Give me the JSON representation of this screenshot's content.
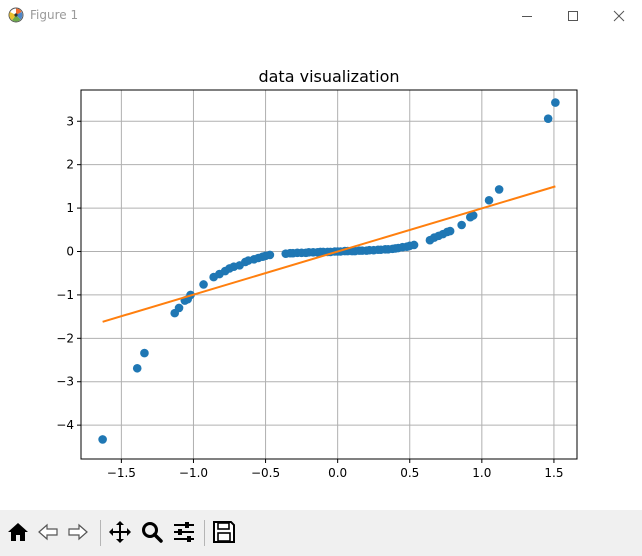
{
  "window": {
    "title": "Figure 1",
    "controls": [
      "minimize",
      "maximize",
      "close"
    ]
  },
  "toolbar": {
    "buttons": [
      {
        "name": "home",
        "icon": "home-icon"
      },
      {
        "name": "back",
        "icon": "arrow-left-icon"
      },
      {
        "name": "forward",
        "icon": "arrow-right-icon"
      },
      {
        "name": "pan",
        "icon": "move-icon"
      },
      {
        "name": "zoom",
        "icon": "magnifier-icon"
      },
      {
        "name": "configure-subplots",
        "icon": "sliders-icon"
      },
      {
        "name": "save",
        "icon": "floppy-disk-icon"
      }
    ]
  },
  "chart_data": {
    "type": "scatter",
    "title": "data visualization",
    "xlabel": "",
    "ylabel": "",
    "xlim": [
      -1.78,
      1.66
    ],
    "ylim": [
      -4.78,
      3.72
    ],
    "xticks": [
      -1.5,
      -1.0,
      -0.5,
      0.0,
      0.5,
      1.0,
      1.5
    ],
    "xtick_labels": [
      "−1.5",
      "−1.0",
      "−0.5",
      "0.0",
      "0.5",
      "1.0",
      "1.5"
    ],
    "yticks": [
      -4,
      -3,
      -2,
      -1,
      0,
      1,
      2,
      3
    ],
    "ytick_labels": [
      "−4",
      "−3",
      "−2",
      "−1",
      "0",
      "1",
      "2",
      "3"
    ],
    "grid": true,
    "colors": {
      "scatter": "#1f77b4",
      "line": "#ff7f0e",
      "grid": "#b0b0b0"
    },
    "series": [
      {
        "kind": "scatter",
        "x": [
          -1.63,
          -1.39,
          -1.34,
          -1.13,
          -1.1,
          -1.06,
          -1.04,
          -1.02,
          -0.93,
          -0.86,
          -0.82,
          -0.78,
          -0.75,
          -0.72,
          -0.68,
          -0.64,
          -0.62,
          -0.58,
          -0.55,
          -0.52,
          -0.5,
          -0.47,
          -0.36,
          -0.33,
          -0.31,
          -0.28,
          -0.25,
          -0.22,
          -0.2,
          -0.17,
          -0.14,
          -0.12,
          -0.1,
          -0.07,
          -0.05,
          -0.02,
          0.0,
          0.02,
          0.05,
          0.07,
          0.1,
          0.12,
          0.15,
          0.17,
          0.2,
          0.22,
          0.25,
          0.28,
          0.3,
          0.33,
          0.35,
          0.38,
          0.4,
          0.42,
          0.45,
          0.48,
          0.5,
          0.53,
          0.64,
          0.67,
          0.7,
          0.73,
          0.76,
          0.78,
          0.86,
          0.92,
          0.94,
          1.05,
          1.12,
          1.46,
          1.51
        ],
        "y": [
          -4.33,
          -2.69,
          -2.34,
          -1.42,
          -1.3,
          -1.13,
          -1.1,
          -1.0,
          -0.76,
          -0.59,
          -0.52,
          -0.45,
          -0.39,
          -0.35,
          -0.32,
          -0.24,
          -0.21,
          -0.18,
          -0.15,
          -0.12,
          -0.1,
          -0.08,
          -0.05,
          -0.04,
          -0.04,
          -0.03,
          -0.03,
          -0.03,
          -0.02,
          -0.02,
          -0.02,
          -0.01,
          -0.01,
          -0.01,
          -0.01,
          0.0,
          0.0,
          0.0,
          0.01,
          0.01,
          0.01,
          0.01,
          0.02,
          0.02,
          0.02,
          0.03,
          0.03,
          0.04,
          0.04,
          0.05,
          0.05,
          0.06,
          0.07,
          0.08,
          0.1,
          0.11,
          0.13,
          0.15,
          0.26,
          0.32,
          0.36,
          0.4,
          0.45,
          0.47,
          0.61,
          0.79,
          0.83,
          1.18,
          1.43,
          3.06,
          3.43
        ]
      },
      {
        "kind": "line",
        "x": [
          -1.63,
          1.51
        ],
        "y": [
          -1.62,
          1.5
        ]
      }
    ]
  }
}
